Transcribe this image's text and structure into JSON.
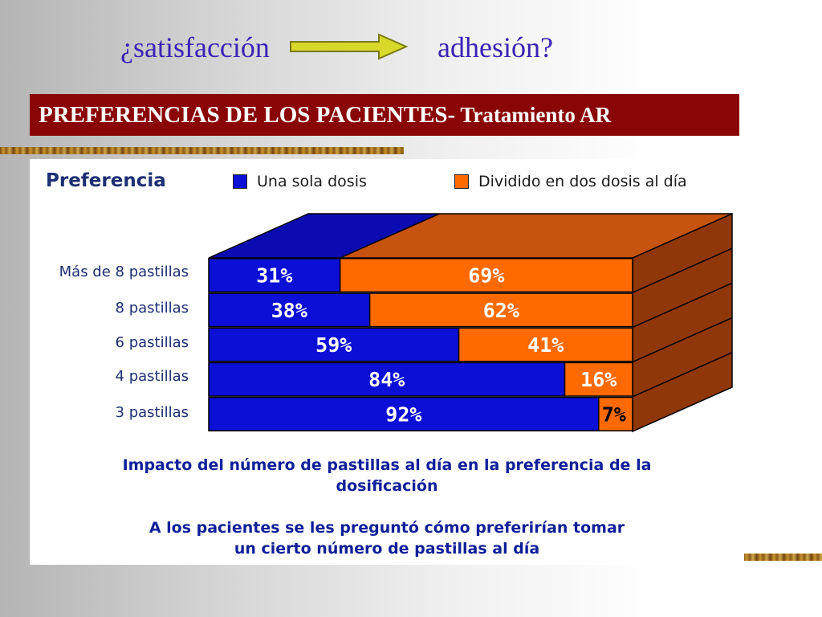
{
  "slide": {
    "title_left": "¿satisfacción",
    "title_right": "adhesión?",
    "banner_strong": "PREFERENCIAS DE LOS PACIENTES-",
    "banner_rest": " Tratamiento AR"
  },
  "chart_data": {
    "type": "bar",
    "orientation": "horizontal",
    "stacked": true,
    "percent": true,
    "three_d": true,
    "title": "Preferencia",
    "legend_position": "top",
    "categories": [
      "Más de 8 pastillas",
      "8 pastillas",
      "6 pastillas",
      "4 pastillas",
      "3 pastillas"
    ],
    "series": [
      {
        "name": "Una sola dosis",
        "color": "#0c0fd6",
        "values": [
          31,
          38,
          59,
          84,
          92
        ],
        "labels": [
          "31%",
          "38%",
          "59%",
          "84%",
          "92%"
        ]
      },
      {
        "name": "Dividido en dos dosis al día",
        "color": "#ff6a00",
        "values": [
          69,
          62,
          41,
          16,
          7
        ],
        "labels": [
          "69%",
          "62%",
          "41%",
          "16%",
          "7%"
        ]
      }
    ],
    "xlim": [
      0,
      100
    ]
  },
  "captions": {
    "line1": "Impacto del número de pastillas al día en la preferencia de la",
    "line2": "dosificación",
    "line3": "A los pacientes se les preguntó cómo preferirían tomar",
    "line4": "un cierto número de pastillas al día"
  }
}
